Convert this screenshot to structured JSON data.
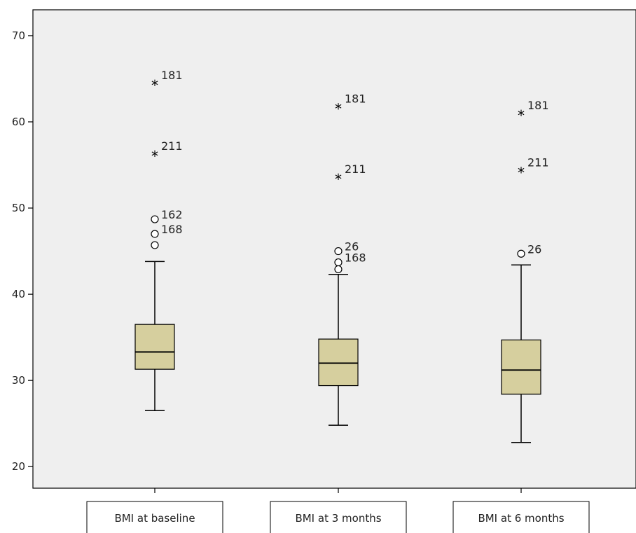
{
  "chart_data": {
    "type": "boxplot",
    "ylim": [
      17.5,
      73
    ],
    "yticks": [
      20,
      30,
      40,
      50,
      60,
      70
    ],
    "grid": false,
    "colors": {
      "box_fill": "#d6cf9e",
      "plot_bg": "#efefef",
      "stroke": "#000000"
    },
    "categories": [
      "BMI at baseline",
      "BMI at 3 months",
      "BMI at 6 months"
    ],
    "boxes": [
      {
        "category": "BMI at baseline",
        "whisker_low": 26.5,
        "q1": 31.3,
        "median": 33.3,
        "q3": 36.5,
        "whisker_high": 43.8,
        "outliers": [
          {
            "value": 64.3,
            "kind": "extreme",
            "label": "181"
          },
          {
            "value": 56.1,
            "kind": "extreme",
            "label": "211"
          },
          {
            "value": 48.7,
            "kind": "outlier",
            "label": "162"
          },
          {
            "value": 47.0,
            "kind": "outlier",
            "label": "168"
          },
          {
            "value": 45.7,
            "kind": "outlier",
            "label": ""
          }
        ]
      },
      {
        "category": "BMI at 3 months",
        "whisker_low": 24.8,
        "q1": 29.4,
        "median": 32.0,
        "q3": 34.8,
        "whisker_high": 42.3,
        "outliers": [
          {
            "value": 61.6,
            "kind": "extreme",
            "label": "181"
          },
          {
            "value": 53.4,
            "kind": "extreme",
            "label": "211"
          },
          {
            "value": 45.0,
            "kind": "outlier",
            "label": "26"
          },
          {
            "value": 43.7,
            "kind": "outlier",
            "label": "168"
          },
          {
            "value": 42.9,
            "kind": "outlier",
            "label": ""
          }
        ]
      },
      {
        "category": "BMI at 6 months",
        "whisker_low": 22.8,
        "q1": 28.4,
        "median": 31.2,
        "q3": 34.7,
        "whisker_high": 43.4,
        "outliers": [
          {
            "value": 60.8,
            "kind": "extreme",
            "label": "181"
          },
          {
            "value": 54.2,
            "kind": "extreme",
            "label": "211"
          },
          {
            "value": 44.7,
            "kind": "outlier",
            "label": "26"
          }
        ]
      }
    ]
  }
}
